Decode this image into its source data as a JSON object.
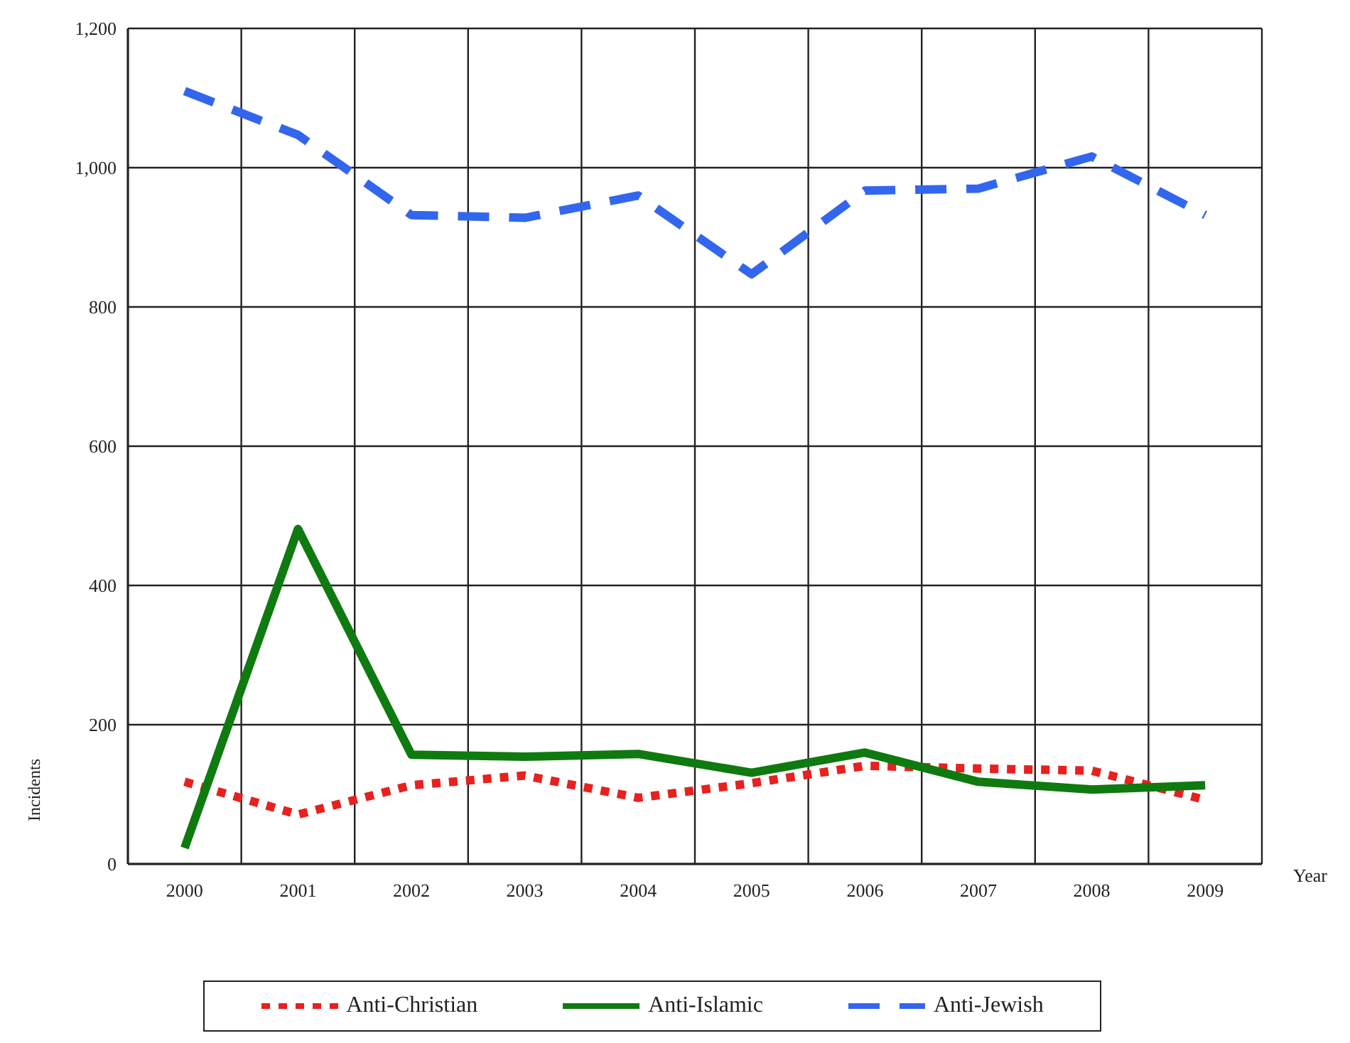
{
  "chart_data": {
    "type": "line",
    "xlabel": "Year",
    "ylabel": "Incidents",
    "categories": [
      "2000",
      "2001",
      "2002",
      "2003",
      "2004",
      "2005",
      "2006",
      "2007",
      "2008",
      "2009"
    ],
    "series": [
      {
        "name": "Anti-Christian",
        "color": "#e8201e",
        "line_style": "dotted",
        "values": [
          118,
          71,
          113,
          127,
          95,
          116,
          141,
          137,
          134,
          92
        ]
      },
      {
        "name": "Anti-Islamic",
        "color": "#0f7a0f",
        "line_style": "solid",
        "values": [
          23,
          481,
          157,
          154,
          158,
          131,
          160,
          118,
          107,
          113
        ]
      },
      {
        "name": "Anti-Jewish",
        "color": "#3366ee",
        "line_style": "dashed",
        "values": [
          1110,
          1047,
          932,
          928,
          960,
          847,
          967,
          970,
          1016,
          932
        ]
      }
    ],
    "ylim": [
      0,
      1200
    ],
    "yticks": [
      0,
      200,
      400,
      600,
      800,
      {
        "value": 1000,
        "label": "1,000"
      },
      {
        "value": 1200,
        "label": "1,200"
      }
    ],
    "grid": true,
    "legend": "bottom",
    "marker": "none"
  }
}
